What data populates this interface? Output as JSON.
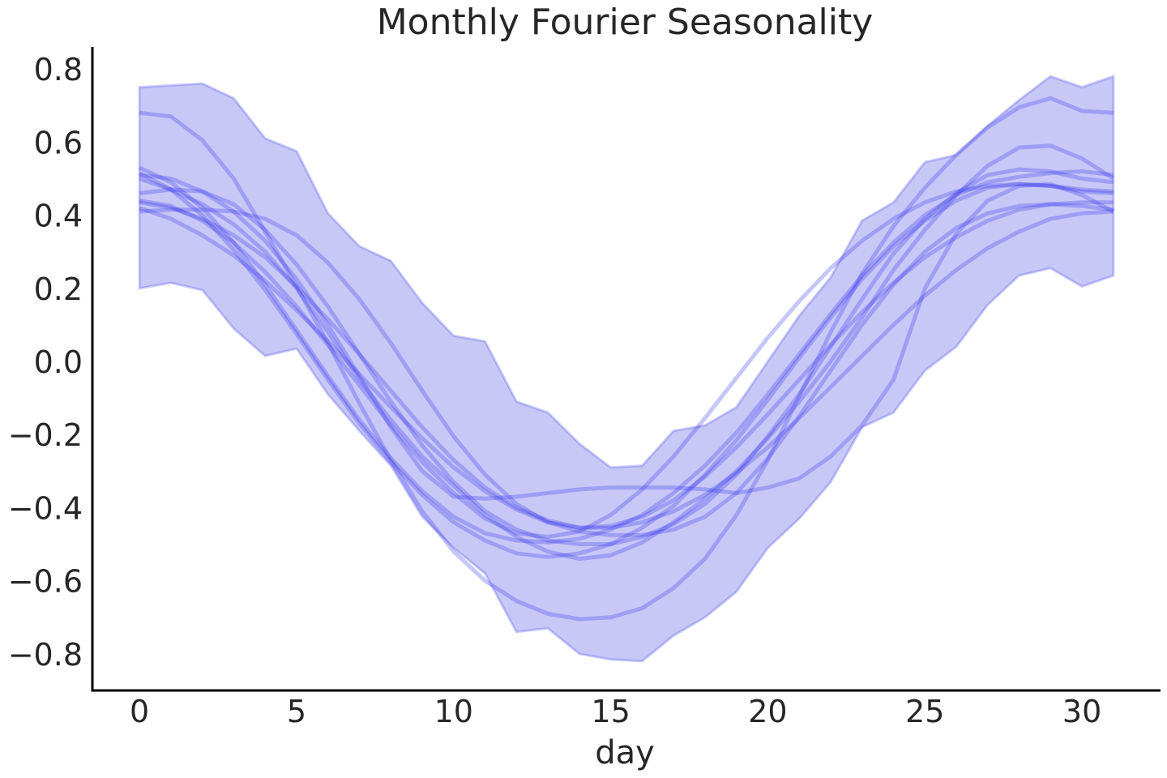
{
  "chart_data": {
    "type": "line",
    "title": "Monthly Fourier Seasonality",
    "xlabel": "day",
    "ylabel": "",
    "xlim": [
      -1.5,
      32.5
    ],
    "ylim": [
      -0.9,
      0.86
    ],
    "x_ticks": [
      0,
      5,
      10,
      15,
      20,
      25,
      30
    ],
    "y_ticks": [
      0.8,
      0.6,
      0.4,
      0.2,
      0.0,
      -0.2,
      -0.4,
      -0.6,
      -0.8
    ],
    "y_tick_labels": [
      "0.8",
      "0.6",
      "0.4",
      "0.2",
      "0.0",
      "−0.2",
      "−0.4",
      "−0.6",
      "−0.8"
    ],
    "grid": false,
    "line_color": "#3333ee",
    "band_color": "#9a9af0",
    "x": [
      0,
      1,
      2,
      3,
      4,
      5,
      6,
      7,
      8,
      9,
      10,
      11,
      12,
      13,
      14,
      15,
      16,
      17,
      18,
      19,
      20,
      21,
      22,
      23,
      24,
      25,
      26,
      27,
      28,
      29,
      30,
      31
    ],
    "band": {
      "upper": [
        0.75,
        0.755,
        0.76,
        0.72,
        0.61,
        0.575,
        0.405,
        0.315,
        0.275,
        0.16,
        0.07,
        0.055,
        -0.11,
        -0.14,
        -0.225,
        -0.29,
        -0.285,
        -0.19,
        -0.175,
        -0.125,
        0.0,
        0.125,
        0.23,
        0.385,
        0.435,
        0.545,
        0.565,
        0.645,
        0.715,
        0.78,
        0.75,
        0.78
      ],
      "lower": [
        0.2,
        0.215,
        0.195,
        0.09,
        0.015,
        0.035,
        -0.09,
        -0.19,
        -0.285,
        -0.425,
        -0.51,
        -0.58,
        -0.74,
        -0.73,
        -0.8,
        -0.815,
        -0.82,
        -0.75,
        -0.7,
        -0.63,
        -0.51,
        -0.43,
        -0.33,
        -0.18,
        -0.14,
        -0.025,
        0.04,
        0.155,
        0.235,
        0.255,
        0.205,
        0.235
      ]
    },
    "series": [
      {
        "values": [
          0.68,
          0.67,
          0.605,
          0.5,
          0.355,
          0.205,
          0.05,
          -0.115,
          -0.27,
          -0.41,
          -0.52,
          -0.6,
          -0.655,
          -0.69,
          -0.705,
          -0.7,
          -0.675,
          -0.62,
          -0.54,
          -0.42,
          -0.27,
          -0.095,
          0.08,
          0.24,
          0.37,
          0.475,
          0.565,
          0.64,
          0.695,
          0.72,
          0.685,
          0.68
        ]
      },
      {
        "values": [
          0.53,
          0.49,
          0.42,
          0.325,
          0.21,
          0.085,
          -0.04,
          -0.16,
          -0.265,
          -0.355,
          -0.425,
          -0.47,
          -0.49,
          -0.495,
          -0.485,
          -0.46,
          -0.42,
          -0.36,
          -0.285,
          -0.195,
          -0.09,
          0.02,
          0.13,
          0.235,
          0.325,
          0.4,
          0.455,
          0.49,
          0.505,
          0.515,
          0.52,
          0.51
        ]
      },
      {
        "values": [
          0.515,
          0.47,
          0.4,
          0.305,
          0.195,
          0.075,
          -0.05,
          -0.17,
          -0.275,
          -0.365,
          -0.44,
          -0.49,
          -0.525,
          -0.535,
          -0.525,
          -0.5,
          -0.455,
          -0.395,
          -0.31,
          -0.215,
          -0.105,
          0.01,
          0.12,
          0.225,
          0.315,
          0.385,
          0.44,
          0.475,
          0.485,
          0.48,
          0.465,
          0.46
        ]
      },
      {
        "values": [
          0.44,
          0.425,
          0.385,
          0.325,
          0.245,
          0.15,
          0.045,
          -0.065,
          -0.175,
          -0.275,
          -0.36,
          -0.43,
          -0.47,
          -0.48,
          -0.465,
          -0.42,
          -0.35,
          -0.26,
          -0.155,
          -0.045,
          0.065,
          0.165,
          0.255,
          0.33,
          0.39,
          0.435,
          0.465,
          0.48,
          0.485,
          0.48,
          0.47,
          0.465
        ]
      },
      {
        "values": [
          0.42,
          0.39,
          0.345,
          0.29,
          0.22,
          0.14,
          0.055,
          -0.035,
          -0.125,
          -0.21,
          -0.29,
          -0.355,
          -0.405,
          -0.44,
          -0.455,
          -0.45,
          -0.425,
          -0.38,
          -0.315,
          -0.235,
          -0.145,
          -0.05,
          0.045,
          0.135,
          0.215,
          0.285,
          0.34,
          0.385,
          0.415,
          0.43,
          0.435,
          0.435
        ]
      },
      {
        "values": [
          0.41,
          0.415,
          0.415,
          0.41,
          0.39,
          0.345,
          0.27,
          0.17,
          0.05,
          -0.08,
          -0.205,
          -0.31,
          -0.39,
          -0.44,
          -0.465,
          -0.475,
          -0.475,
          -0.46,
          -0.425,
          -0.36,
          -0.265,
          -0.15,
          -0.025,
          0.1,
          0.21,
          0.3,
          0.365,
          0.405,
          0.425,
          0.43,
          0.425,
          0.415
        ]
      },
      {
        "values": [
          0.435,
          0.42,
          0.39,
          0.345,
          0.285,
          0.205,
          0.115,
          0.02,
          -0.08,
          -0.18,
          -0.27,
          -0.345,
          -0.4,
          -0.435,
          -0.455,
          -0.455,
          -0.44,
          -0.41,
          -0.365,
          -0.305,
          -0.235,
          -0.155,
          -0.07,
          0.015,
          0.1,
          0.18,
          0.25,
          0.31,
          0.355,
          0.39,
          0.405,
          0.41
        ]
      },
      {
        "values": [
          0.51,
          0.5,
          0.465,
          0.41,
          0.33,
          0.225,
          0.1,
          -0.04,
          -0.18,
          -0.3,
          -0.37,
          -0.375,
          -0.37,
          -0.36,
          -0.35,
          -0.345,
          -0.345,
          -0.345,
          -0.35,
          -0.36,
          -0.345,
          -0.32,
          -0.26,
          -0.175,
          -0.05,
          0.2,
          0.35,
          0.44,
          0.48,
          0.485,
          0.455,
          0.41
        ]
      },
      {
        "values": [
          0.46,
          0.47,
          0.465,
          0.43,
          0.36,
          0.265,
          0.15,
          0.02,
          -0.11,
          -0.23,
          -0.33,
          -0.41,
          -0.46,
          -0.49,
          -0.5,
          -0.5,
          -0.48,
          -0.445,
          -0.39,
          -0.31,
          -0.205,
          -0.09,
          0.04,
          0.17,
          0.295,
          0.39,
          0.46,
          0.51,
          0.525,
          0.52,
          0.5,
          0.49
        ]
      },
      {
        "values": [
          0.5,
          0.47,
          0.43,
          0.375,
          0.3,
          0.2,
          0.08,
          -0.05,
          -0.16,
          -0.26,
          -0.34,
          -0.42,
          -0.48,
          -0.52,
          -0.54,
          -0.53,
          -0.495,
          -0.44,
          -0.375,
          -0.3,
          -0.21,
          -0.11,
          0.0,
          0.12,
          0.25,
          0.36,
          0.455,
          0.535,
          0.585,
          0.59,
          0.555,
          0.5
        ]
      }
    ]
  }
}
